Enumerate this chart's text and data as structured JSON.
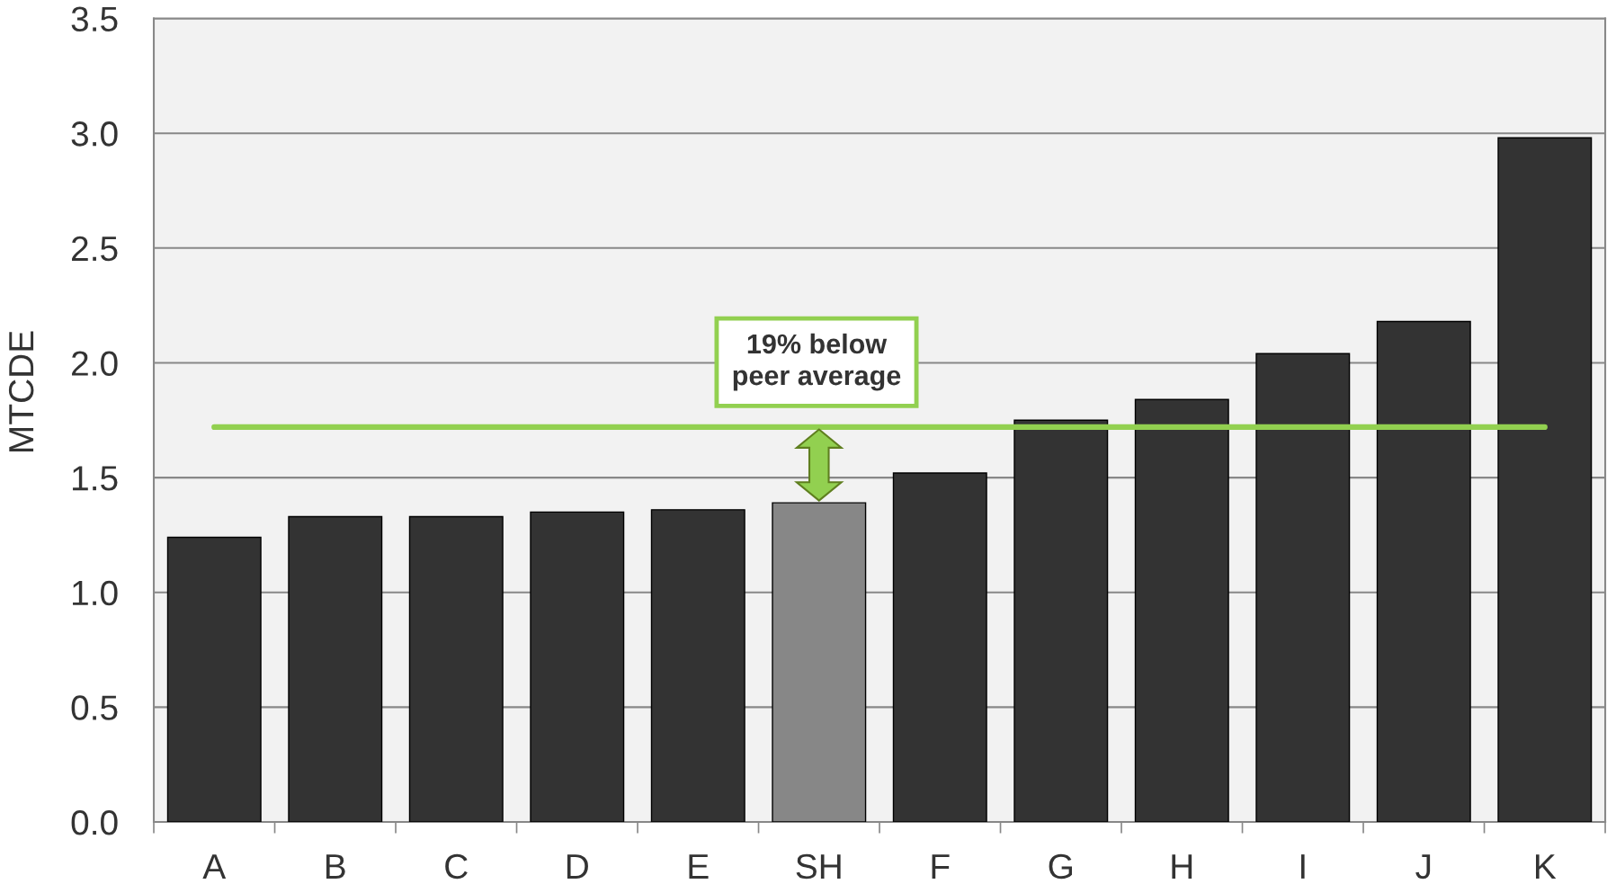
{
  "chart_data": {
    "type": "bar",
    "ylabel": "MTCDE",
    "categories": [
      "A",
      "B",
      "C",
      "D",
      "E",
      "SH",
      "F",
      "G",
      "H",
      "I",
      "J",
      "K"
    ],
    "values": [
      1.24,
      1.33,
      1.33,
      1.35,
      1.36,
      1.39,
      1.52,
      1.75,
      1.84,
      2.04,
      2.18,
      2.98
    ],
    "colors": [
      "#333333",
      "#333333",
      "#333333",
      "#333333",
      "#333333",
      "#878787",
      "#333333",
      "#333333",
      "#333333",
      "#333333",
      "#333333",
      "#333333"
    ],
    "ylim": [
      0,
      3.5
    ],
    "yticks": [
      {
        "value": 0,
        "label": "0.0"
      },
      {
        "value": 0.5,
        "label": "0.5"
      },
      {
        "value": 1,
        "label": "1.0"
      },
      {
        "value": 1.5,
        "label": "1.5"
      },
      {
        "value": 2,
        "label": "2.0"
      },
      {
        "value": 2.5,
        "label": "2.5"
      },
      {
        "value": 3,
        "label": "3.0"
      },
      {
        "value": 3.5,
        "label": "3.5"
      }
    ],
    "grid": "y",
    "legend": false,
    "ref_lines": [
      {
        "axis": "y",
        "value": 1.72,
        "color": "#92d050",
        "line_style": "solid"
      }
    ],
    "annotations": [
      {
        "text": "19% below\npeer average",
        "x": "SH",
        "y": 1.72
      }
    ]
  }
}
